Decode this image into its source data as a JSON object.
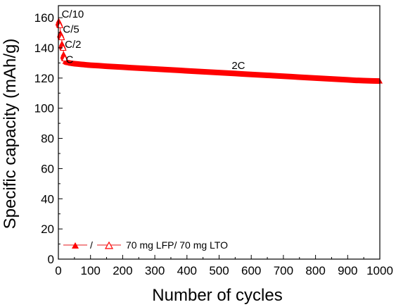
{
  "chart_data": {
    "type": "scatter",
    "title": "",
    "xlabel": "Number of cycles",
    "ylabel": "Specific capacity (mAh/g)",
    "xlim": [
      0,
      1000
    ],
    "ylim": [
      0,
      168
    ],
    "xticks": [
      0,
      100,
      200,
      300,
      400,
      500,
      600,
      700,
      800,
      900,
      1000
    ],
    "yticks": [
      0,
      20,
      40,
      60,
      80,
      100,
      120,
      140,
      160
    ],
    "grid": false,
    "legend": {
      "position": "bottom-left",
      "separator": "/",
      "label": "70 mg LFP/ 70 mg LTO"
    },
    "colors": {
      "charge": "#ff0000",
      "discharge": "#ff0000",
      "line": "#e41a1c"
    },
    "rate_steps": [
      {
        "label": "C/10",
        "cycles": [
          1,
          5
        ],
        "capacity": [
          158,
          156
        ]
      },
      {
        "label": "C/5",
        "cycles": [
          6,
          10
        ],
        "capacity": [
          150,
          148
        ]
      },
      {
        "label": "C/2",
        "cycles": [
          11,
          15
        ],
        "capacity": [
          143,
          141
        ]
      },
      {
        "label": "C",
        "cycles": [
          16,
          20
        ],
        "capacity": [
          136,
          134
        ]
      },
      {
        "label": "2C",
        "cycles": [
          21,
          1000
        ],
        "capacity": [
          131,
          118
        ]
      }
    ],
    "annotations": [
      {
        "text": "C/10",
        "x": 10,
        "y": 160
      },
      {
        "text": "C/5",
        "x": 14,
        "y": 150
      },
      {
        "text": "C/2",
        "x": 20,
        "y": 140
      },
      {
        "text": "C",
        "x": 23,
        "y": 130
      },
      {
        "text": "2C",
        "x": 560,
        "y": 126
      }
    ],
    "series": [
      {
        "name": "",
        "marker": "filled-triangle",
        "points": [
          [
            1,
            158
          ],
          [
            2,
            157.5
          ],
          [
            3,
            157
          ],
          [
            4,
            156.5
          ],
          [
            5,
            156
          ],
          [
            6,
            150
          ],
          [
            7,
            149.5
          ],
          [
            8,
            149
          ],
          [
            9,
            148.5
          ],
          [
            10,
            148
          ],
          [
            11,
            143
          ],
          [
            12,
            142.5
          ],
          [
            13,
            142
          ],
          [
            14,
            141.5
          ],
          [
            15,
            141
          ],
          [
            16,
            136
          ],
          [
            17,
            135.5
          ],
          [
            18,
            135
          ],
          [
            19,
            134.5
          ],
          [
            20,
            134
          ],
          [
            21,
            131
          ],
          [
            25,
            130.5
          ],
          [
            30,
            130.2
          ],
          [
            40,
            129.8
          ],
          [
            50,
            129.5
          ],
          [
            60,
            129.3
          ],
          [
            70,
            129.1
          ],
          [
            80,
            128.9
          ],
          [
            90,
            128.7
          ],
          [
            100,
            128.5
          ],
          [
            125,
            128.2
          ],
          [
            150,
            127.8
          ],
          [
            175,
            127.5
          ],
          [
            200,
            127.2
          ],
          [
            225,
            126.9
          ],
          [
            250,
            126.6
          ],
          [
            275,
            126.3
          ],
          [
            300,
            126
          ],
          [
            325,
            125.7
          ],
          [
            350,
            125.4
          ],
          [
            375,
            125.1
          ],
          [
            400,
            124.8
          ],
          [
            425,
            124.5
          ],
          [
            450,
            124.2
          ],
          [
            475,
            123.9
          ],
          [
            500,
            123.6
          ],
          [
            525,
            123.3
          ],
          [
            550,
            123
          ],
          [
            575,
            122.7
          ],
          [
            600,
            122.4
          ],
          [
            625,
            122.1
          ],
          [
            650,
            121.8
          ],
          [
            675,
            121.5
          ],
          [
            700,
            121.2
          ],
          [
            725,
            120.9
          ],
          [
            750,
            120.6
          ],
          [
            775,
            120.3
          ],
          [
            800,
            120
          ],
          [
            825,
            119.7
          ],
          [
            850,
            119.4
          ],
          [
            875,
            119.1
          ],
          [
            900,
            118.8
          ],
          [
            925,
            118.5
          ],
          [
            950,
            118.3
          ],
          [
            975,
            118.1
          ],
          [
            1000,
            118
          ]
        ]
      },
      {
        "name": "",
        "marker": "open-triangle",
        "points": [
          [
            1,
            157
          ],
          [
            2,
            156.5
          ],
          [
            3,
            156
          ],
          [
            4,
            155.5
          ],
          [
            5,
            155
          ],
          [
            6,
            149
          ],
          [
            7,
            148.5
          ],
          [
            8,
            148
          ],
          [
            9,
            147.5
          ],
          [
            10,
            147
          ],
          [
            11,
            142
          ],
          [
            12,
            141.5
          ],
          [
            13,
            141
          ],
          [
            14,
            140.5
          ],
          [
            15,
            140
          ],
          [
            16,
            135
          ],
          [
            17,
            134.5
          ],
          [
            18,
            134
          ],
          [
            19,
            133.5
          ],
          [
            20,
            133
          ]
        ]
      }
    ]
  }
}
